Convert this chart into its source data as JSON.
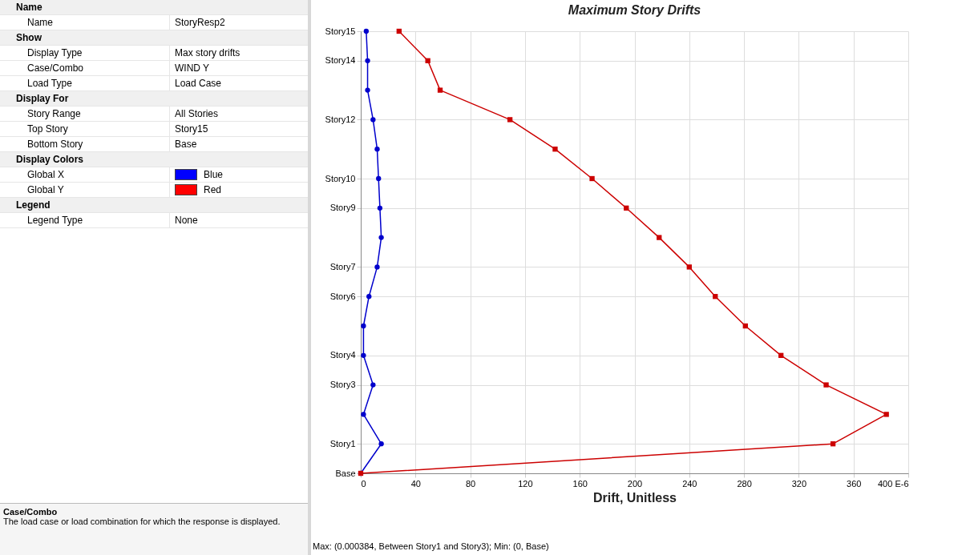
{
  "chart_data": [
    {
      "type": "other",
      "categories": [
        "Name",
        "Name",
        "Show",
        "Display Type",
        "Case/Combo",
        "Load Type",
        "Display For",
        "Story Range",
        "Top Story",
        "Bottom Story",
        "Display Colors",
        "Global X",
        "Global Y",
        "Legend",
        "Legend Type"
      ],
      "value_labels": [
        null,
        "StoryResp2",
        null,
        "Max story drifts",
        "WIND Y",
        "Load Case",
        null,
        "All Stories",
        "Story15",
        "Base",
        null,
        "Blue",
        "Red",
        null,
        "None"
      ],
      "colors": [
        null,
        null,
        null,
        null,
        null,
        null,
        null,
        null,
        null,
        null,
        null,
        "#0000ff",
        "#ff0000",
        null,
        null
      ],
      "annotations": [
        "Case/Combo",
        "The load case or load combination for which the response is displayed."
      ]
    },
    {
      "type": "line",
      "title": "Maximum Story Drifts",
      "xlabel": "Drift, Unitless",
      "orientation": "horizontal",
      "categories": [
        "Story15",
        "Story14",
        null,
        "Story12",
        null,
        "Story10",
        "Story9",
        null,
        "Story7",
        "Story6",
        null,
        "Story4",
        "Story3",
        null,
        "Story1",
        "Base"
      ],
      "xlim": [
        0,
        400
      ],
      "xticks": [
        0,
        40,
        80,
        120,
        160,
        200,
        240,
        280,
        320,
        360,
        {
          "value": 400,
          "label": "400 E-6"
        }
      ],
      "grid": true,
      "series": [
        {
          "color": "#0000cc",
          "marker": "circle",
          "values": [
            4,
            5,
            5,
            9,
            12,
            13,
            14,
            15,
            12,
            6,
            2,
            2,
            9,
            2,
            15,
            0
          ]
        },
        {
          "color": "#cc0000",
          "marker": "square",
          "values": [
            28,
            49,
            58,
            109,
            142,
            169,
            194,
            218,
            240,
            259,
            281,
            307,
            340,
            384,
            345,
            0
          ]
        }
      ],
      "annotations": [
        "Max: (0.000384, Between Story1 and Story3);  Min: (0, Base)"
      ]
    }
  ]
}
